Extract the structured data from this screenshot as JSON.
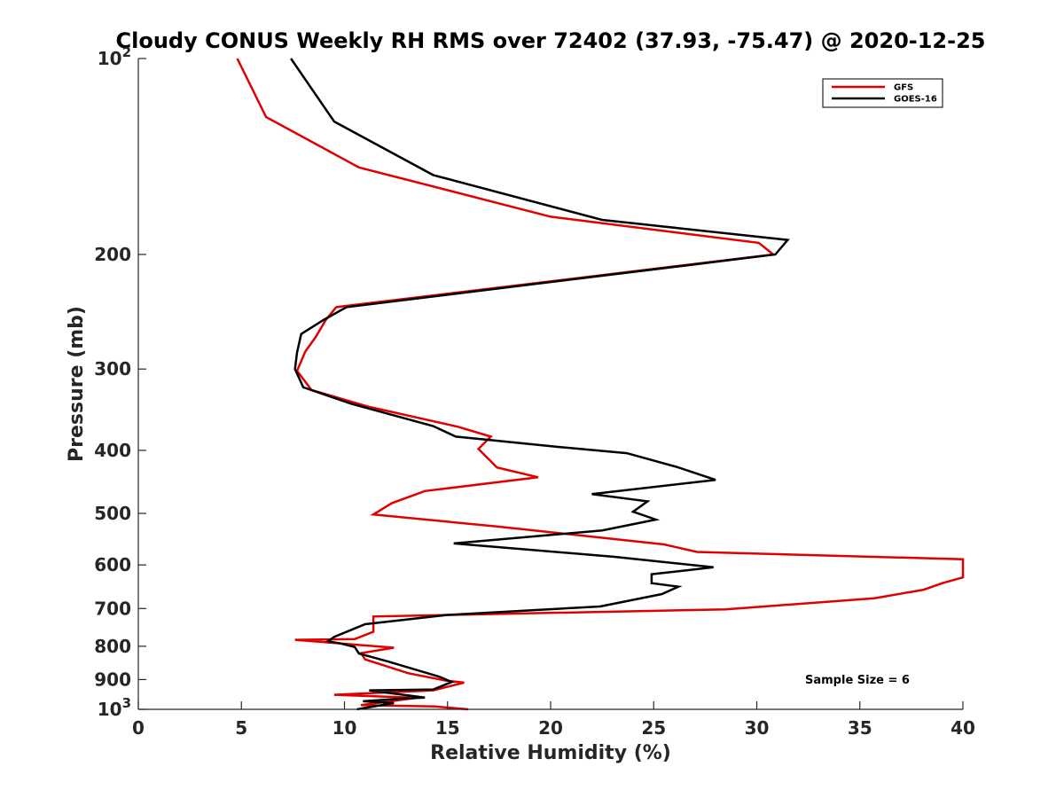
{
  "chart_data": {
    "type": "line",
    "title": "Cloudy CONUS Weekly RH RMS over 72402 (37.93, -75.47) @ 2020-12-25",
    "xlabel": "Relative Humidity (%)",
    "ylabel": "Pressure (mb)",
    "xlim": [
      0,
      40
    ],
    "ylim": [
      100,
      1000
    ],
    "y_scale": "log",
    "y_reversed": true,
    "x_ticks": [
      "0",
      "5",
      "10",
      "15",
      "20",
      "25",
      "30",
      "35",
      "40"
    ],
    "y_ticks": [
      {
        "value": 100,
        "base": "10",
        "exp": "2"
      },
      {
        "value": 200,
        "label": "200"
      },
      {
        "value": 300,
        "label": "300"
      },
      {
        "value": 400,
        "label": "400"
      },
      {
        "value": 500,
        "label": "500"
      },
      {
        "value": 600,
        "label": "600"
      },
      {
        "value": 700,
        "label": "700"
      },
      {
        "value": 800,
        "label": "800"
      },
      {
        "value": 900,
        "label": "900"
      },
      {
        "value": 1000,
        "base": "10",
        "exp": "3"
      }
    ],
    "grid": false,
    "legend_position": "top-right",
    "annotation": "Sample Size = 6",
    "series": [
      {
        "name": "GFS",
        "color": "#e00000",
        "x": [
          4.8,
          6.2,
          10.7,
          20.0,
          30.1,
          30.8,
          9.6,
          9.1,
          8.6,
          8.1,
          7.7,
          8.4,
          11.2,
          15.5,
          17.1,
          16.5,
          17.4,
          19.4,
          13.9,
          12.3,
          11.4,
          17.5,
          25.5,
          27.1,
          40.0,
          40.0,
          40.0,
          39.0,
          38.1,
          35.7,
          28.5,
          11.4,
          11.4,
          10.5,
          7.6,
          12.4,
          10.8,
          11.0,
          13.1,
          14.9,
          15.8,
          14.3,
          9.5,
          13.5,
          10.8,
          14.4,
          16.0
        ],
        "y": [
          100,
          123,
          147,
          175,
          192,
          200,
          241,
          252,
          268,
          282,
          302,
          323,
          343,
          368,
          381,
          398,
          425,
          440,
          462,
          482,
          502,
          524,
          558,
          573,
          588,
          602,
          627,
          640,
          655,
          675,
          702,
          720,
          760,
          780,
          782,
          804,
          820,
          838,
          880,
          903,
          910,
          935,
          950,
          960,
          985,
          990,
          1000
        ]
      },
      {
        "name": "GOES-16",
        "color": "#000000",
        "x": [
          7.4,
          9.5,
          14.3,
          22.5,
          31.5,
          30.9,
          10.1,
          9.0,
          7.9,
          7.7,
          7.6,
          8.0,
          10.3,
          14.3,
          15.4,
          20.3,
          23.7,
          26.1,
          28.0,
          22.0,
          24.7,
          24.0,
          25.1,
          22.5,
          15.3,
          23.1,
          27.9,
          24.9,
          24.9,
          26.2,
          25.4,
          22.4,
          15.0,
          11.0,
          9.5,
          9.2,
          9.8,
          10.5,
          10.7,
          12.1,
          14.6,
          15.2,
          14.3,
          11.2,
          13.9,
          12.7,
          10.9,
          12.4,
          10.6
        ],
        "y": [
          100,
          125,
          151,
          177,
          190,
          200,
          241,
          252,
          265,
          283,
          300,
          320,
          339,
          367,
          381,
          395,
          404,
          424,
          444,
          467,
          479,
          497,
          511,
          531,
          556,
          583,
          605,
          620,
          640,
          648,
          665,
          695,
          716,
          740,
          774,
          786,
          792,
          802,
          821,
          844,
          891,
          908,
          932,
          935,
          959,
          963,
          972,
          978,
          1000
        ]
      }
    ]
  }
}
